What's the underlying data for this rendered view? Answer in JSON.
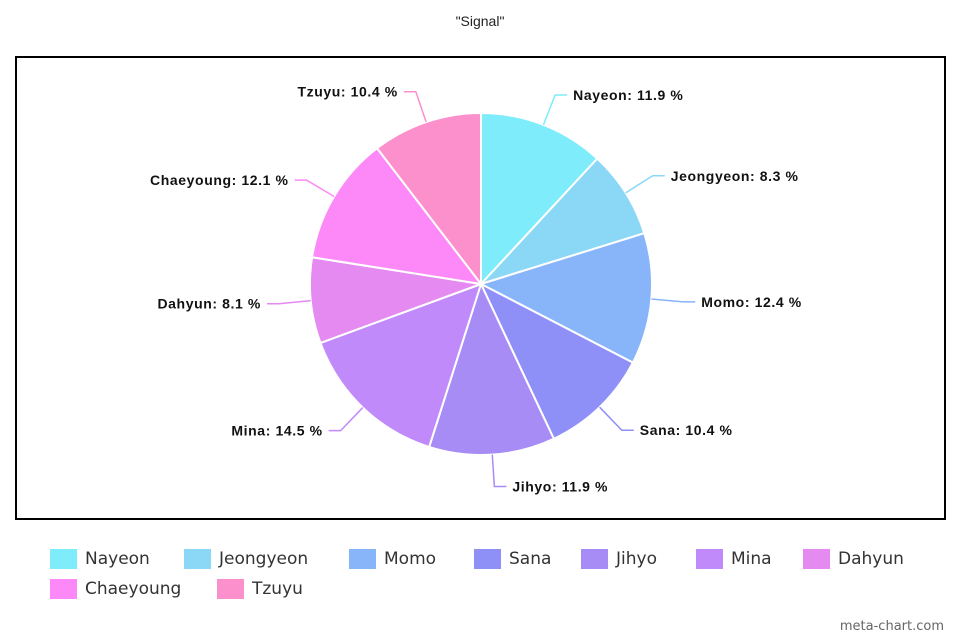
{
  "chart_data": {
    "type": "pie",
    "title": "\"Signal\"",
    "categories": [
      "Nayeon",
      "Jeongyeon",
      "Momo",
      "Sana",
      "Jihyo",
      "Mina",
      "Dahyun",
      "Chaeyoung",
      "Tzuyu"
    ],
    "values": [
      11.9,
      8.3,
      12.4,
      10.4,
      11.9,
      14.5,
      8.1,
      12.1,
      10.4
    ],
    "labels": [
      "Nayeon: 11.9 %",
      "Jeongyeon: 8.3 %",
      "Momo: 12.4 %",
      "Sana: 10.4 %",
      "Jihyo: 11.9 %",
      "Mina: 14.5 %",
      "Dahyun: 8.1 %",
      "Chaeyoung: 12.1 %",
      "Tzuyu: 10.4 %"
    ],
    "colors": [
      "#7eecfa",
      "#8bd8f6",
      "#88b4fa",
      "#8f8ff8",
      "#a88cf5",
      "#c18afa",
      "#e58af0",
      "#fd89f8",
      "#fc90cd"
    ],
    "legend_position": "bottom"
  },
  "watermark": "meta-chart.com"
}
